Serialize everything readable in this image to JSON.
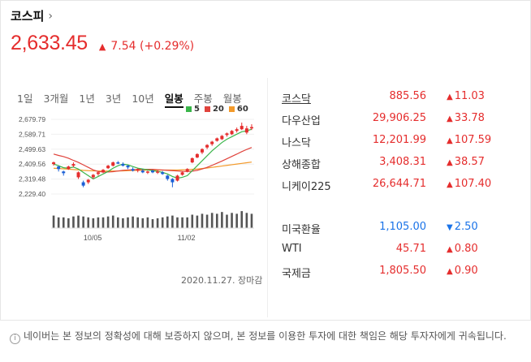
{
  "header": {
    "title": "코스피",
    "chevron": "›",
    "price": "2,633.45",
    "change_arrow": "▲",
    "change": "7.54 (+0.29%)"
  },
  "tabs": [
    "1일",
    "3개월",
    "1년",
    "3년",
    "10년",
    "일봉",
    "주봉",
    "월봉"
  ],
  "active_tab": "일봉",
  "legend": [
    {
      "label": "5",
      "color": "#3ab54a"
    },
    {
      "label": "20",
      "color": "#e0433c"
    },
    {
      "label": "60",
      "color": "#f39a2b"
    }
  ],
  "chart_data": {
    "type": "candlestick",
    "y_ticks": [
      "2,679.79",
      "2,589.71",
      "2,499.63",
      "2,409.56",
      "2,319.48",
      "2,229.40"
    ],
    "x_ticks": [
      "10/05",
      "11/02"
    ],
    "ylim": [
      2229.4,
      2679.79
    ],
    "candles": [
      [
        2410,
        2420,
        2400,
        2425
      ],
      [
        2395,
        2380,
        2365,
        2400
      ],
      [
        2365,
        2355,
        2340,
        2370
      ],
      [
        2380,
        2395,
        2375,
        2400
      ],
      [
        2400,
        2410,
        2390,
        2420
      ],
      [
        2330,
        2360,
        2320,
        2365
      ],
      [
        2300,
        2280,
        2270,
        2310
      ],
      [
        2300,
        2315,
        2290,
        2320
      ],
      [
        2330,
        2345,
        2320,
        2350
      ],
      [
        2350,
        2360,
        2340,
        2365
      ],
      [
        2360,
        2375,
        2355,
        2380
      ],
      [
        2385,
        2400,
        2380,
        2405
      ],
      [
        2400,
        2420,
        2395,
        2425
      ],
      [
        2420,
        2415,
        2410,
        2428
      ],
      [
        2410,
        2400,
        2395,
        2420
      ],
      [
        2400,
        2390,
        2380,
        2405
      ],
      [
        2380,
        2370,
        2365,
        2390
      ],
      [
        2370,
        2380,
        2360,
        2385
      ],
      [
        2370,
        2360,
        2355,
        2380
      ],
      [
        2360,
        2365,
        2350,
        2370
      ],
      [
        2370,
        2360,
        2355,
        2375
      ],
      [
        2360,
        2365,
        2350,
        2372
      ],
      [
        2360,
        2350,
        2345,
        2368
      ],
      [
        2340,
        2320,
        2310,
        2345
      ],
      [
        2320,
        2300,
        2270,
        2325
      ],
      [
        2310,
        2340,
        2305,
        2345
      ],
      [
        2345,
        2360,
        2340,
        2365
      ],
      [
        2365,
        2380,
        2360,
        2385
      ],
      [
        2420,
        2445,
        2415,
        2450
      ],
      [
        2450,
        2470,
        2445,
        2475
      ],
      [
        2480,
        2500,
        2470,
        2505
      ],
      [
        2510,
        2525,
        2500,
        2530
      ],
      [
        2530,
        2545,
        2520,
        2550
      ],
      [
        2550,
        2565,
        2545,
        2570
      ],
      [
        2560,
        2580,
        2555,
        2585
      ],
      [
        2585,
        2595,
        2575,
        2600
      ],
      [
        2590,
        2610,
        2585,
        2615
      ],
      [
        2610,
        2620,
        2600,
        2630
      ],
      [
        2620,
        2640,
        2615,
        2660
      ],
      [
        2600,
        2625,
        2590,
        2640
      ],
      [
        2625,
        2633,
        2615,
        2650
      ]
    ],
    "ma5": [
      2410,
      2400,
      2388,
      2385,
      2392,
      2380,
      2360,
      2340,
      2320,
      2335,
      2350,
      2365,
      2385,
      2400,
      2410,
      2405,
      2395,
      2385,
      2380,
      2375,
      2370,
      2366,
      2360,
      2350,
      2335,
      2325,
      2330,
      2340,
      2370,
      2400,
      2430,
      2460,
      2490,
      2515,
      2540,
      2560,
      2575,
      2590,
      2605,
      2610,
      2620
    ],
    "ma20": [
      2470,
      2462,
      2455,
      2445,
      2432,
      2420,
      2405,
      2390,
      2375,
      2365,
      2362,
      2362,
      2364,
      2368,
      2372,
      2374,
      2376,
      2377,
      2378,
      2378,
      2378,
      2376,
      2374,
      2372,
      2370,
      2368,
      2366,
      2365,
      2367,
      2372,
      2380,
      2390,
      2402,
      2415,
      2428,
      2442,
      2456,
      2470,
      2485,
      2498,
      2510
    ],
    "ma60": [
      2385,
      2383,
      2381,
      2379,
      2377,
      2375,
      2372,
      2370,
      2369,
      2368,
      2368,
      2368,
      2368,
      2368,
      2369,
      2370,
      2371,
      2372,
      2373,
      2374,
      2374,
      2374,
      2374,
      2374,
      2374,
      2374,
      2375,
      2376,
      2378,
      2380,
      2383,
      2386,
      2390,
      2394,
      2398,
      2402,
      2406,
      2410,
      2414,
      2418,
      2422
    ],
    "volume": [
      0.7,
      0.6,
      0.6,
      0.55,
      0.65,
      0.7,
      0.65,
      0.6,
      0.55,
      0.6,
      0.6,
      0.65,
      0.7,
      0.6,
      0.55,
      0.6,
      0.65,
      0.6,
      0.55,
      0.6,
      0.5,
      0.55,
      0.6,
      0.65,
      0.7,
      0.6,
      0.6,
      0.6,
      0.75,
      0.7,
      0.8,
      0.75,
      0.85,
      0.8,
      0.9,
      0.75,
      0.85,
      0.8,
      0.95,
      0.85,
      0.8
    ]
  },
  "timestamp": "2020.11.27. 장마감",
  "quotes": [
    {
      "name": "코스닥",
      "value": "885.56",
      "arrow": "▲",
      "change": "11.03"
    },
    {
      "name": "다우산업",
      "value": "29,906.25",
      "arrow": "▲",
      "change": "33.78"
    },
    {
      "name": "나스닥",
      "value": "12,201.99",
      "arrow": "▲",
      "change": "107.59"
    },
    {
      "name": "상해종합",
      "value": "3,408.31",
      "arrow": "▲",
      "change": "38.57"
    },
    {
      "name": "니케이225",
      "value": "26,644.71",
      "arrow": "▲",
      "change": "107.40"
    }
  ],
  "quotes2": [
    {
      "name": "미국환율",
      "value": "1,105.00",
      "arrow": "▼",
      "change": "2.50"
    },
    {
      "name": "WTI",
      "value": "45.71",
      "arrow": "▲",
      "change": "0.80"
    },
    {
      "name": "국제금",
      "value": "1,805.50",
      "arrow": "▲",
      "change": "0.90"
    }
  ],
  "footer": {
    "icon": "i",
    "text": "네이버는 본 정보의 정확성에 대해 보증하지 않으며, 본 정보를 이용한 투자에 대한 책임은 해당 투자자에게 귀속됩니다."
  }
}
